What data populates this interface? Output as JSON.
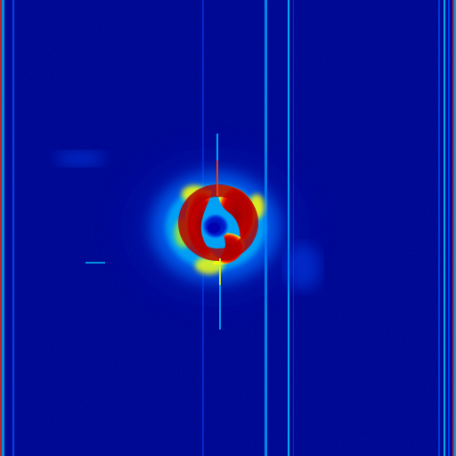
{
  "image": {
    "colormap": "jet",
    "colors": {
      "background": "#00008a",
      "low": "#0000c8",
      "mid_low": "#0050ff",
      "mid": "#00c8ff",
      "mid_high": "#ffff00",
      "high": "#ff3000",
      "saturated": "#960000"
    }
  }
}
